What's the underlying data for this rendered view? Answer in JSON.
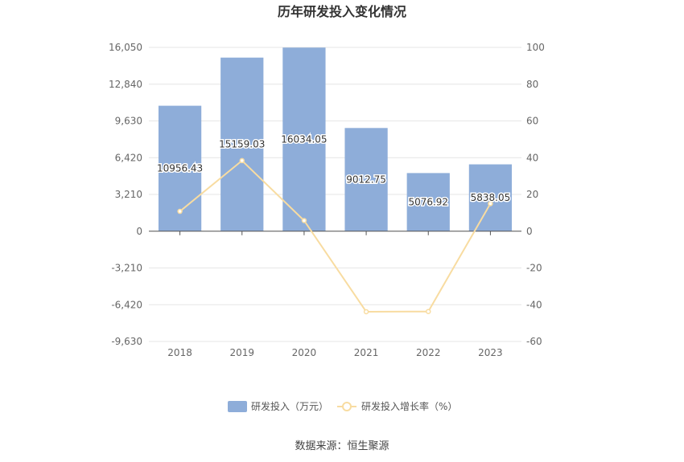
{
  "chart_data": {
    "type": "bar",
    "title": "历年研发投入变化情况",
    "categories": [
      "2018",
      "2019",
      "2020",
      "2021",
      "2022",
      "2023"
    ],
    "series": [
      {
        "name": "研发投入（万元）",
        "type": "bar",
        "axis": "left",
        "color": "#8eadd9",
        "values": [
          10956.43,
          15159.03,
          16034.05,
          9012.75,
          5076.92,
          5838.05
        ],
        "labels": [
          "10956.43",
          "15159.03",
          "16034.05",
          "9012.75",
          "5076.92",
          "5838.05"
        ]
      },
      {
        "name": "研发投入增长率（%）",
        "type": "line",
        "axis": "right",
        "color": "#f8dca1",
        "values": [
          10.8,
          38.4,
          5.8,
          -43.8,
          -43.7,
          15.0
        ]
      }
    ],
    "y_left": {
      "ylim": [
        -9630,
        16050
      ],
      "ticks": [
        16050,
        12840,
        9630,
        6420,
        3210,
        0,
        -3210,
        -6420,
        -9630
      ],
      "tick_labels": [
        "16,050",
        "12,840",
        "9,630",
        "6,420",
        "3,210",
        "0",
        "-3,210",
        "-6,420",
        "-9,630"
      ]
    },
    "y_right": {
      "ylim": [
        -60,
        100
      ],
      "ticks": [
        100,
        80,
        60,
        40,
        20,
        0,
        -20,
        -40,
        -60
      ],
      "tick_labels": [
        "100",
        "80",
        "60",
        "40",
        "20",
        "0",
        "-20",
        "-40",
        "-60"
      ]
    },
    "grid": true,
    "legend_position": "bottom-center",
    "source": "数据来源：恒生聚源"
  }
}
